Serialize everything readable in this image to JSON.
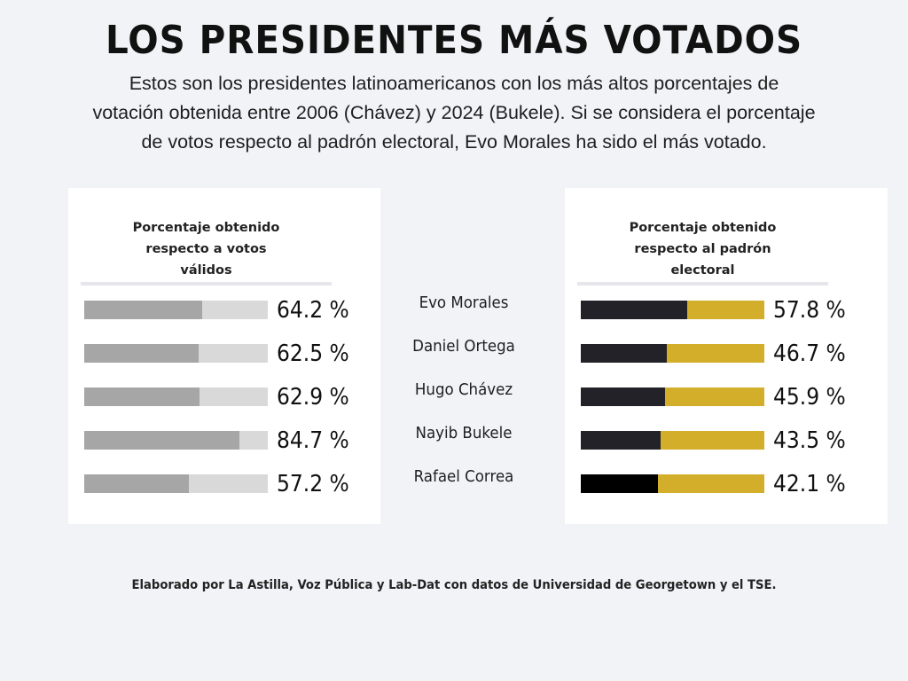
{
  "header": {
    "title": "LOS PRESIDENTES MÁS VOTADOS",
    "subtitle_lines": [
      "Estos son los presidentes  latinoamericanos con los más altos porcentajes de",
      "votación  obtenida entre 2006 (Chávez) y 2024 (Bukele). Si se considera el porcentaje",
      "de votos respecto al padrón electoral, Evo Morales ha sido el más votado."
    ]
  },
  "colors": {
    "background": "#f2f3f7",
    "panel": "#ffffff",
    "left_fill": "#a6a6a6",
    "left_track": "#d9d9d9",
    "right_fill": "#222228",
    "right_track": "#d2ae2a"
  },
  "chart_data": [
    {
      "type": "bar",
      "orientation": "horizontal",
      "title_lines": [
        "Porcentaje obtenido",
        "respecto a votos",
        "válidos"
      ],
      "categories": [
        "Evo Morales",
        "Daniel Ortega",
        "Hugo Chávez",
        "Nayib Bukele",
        "Rafael Correa"
      ],
      "values": [
        64.2,
        62.5,
        62.9,
        84.7,
        57.2
      ],
      "value_labels": [
        "64.2 %",
        "62.5 %",
        "62.9 %",
        "84.7 %",
        "57.2 %"
      ],
      "xlim": [
        0,
        100
      ],
      "unit": "%",
      "grid": false
    },
    {
      "type": "bar",
      "orientation": "horizontal",
      "title_lines": [
        "Porcentaje obtenido",
        "respecto al padrón",
        "electoral"
      ],
      "categories": [
        "Evo Morales",
        "Daniel Ortega",
        "Hugo Chávez",
        "Nayib Bukele",
        "Rafael Correa"
      ],
      "values": [
        57.8,
        46.7,
        45.9,
        43.5,
        42.1
      ],
      "value_labels": [
        "57.8 %",
        "46.7 %",
        "45.9 %",
        "43.5 %",
        "42.1 %"
      ],
      "xlim": [
        0,
        100
      ],
      "unit": "%",
      "grid": false
    }
  ],
  "names": [
    "Evo Morales",
    "Daniel Ortega",
    "Hugo Chávez",
    "Nayib Bukele",
    "Rafael Correa"
  ],
  "footer": "Elaborado por La Astilla, Voz Pública y Lab-Dat con datos de Universidad de Georgetown y el TSE."
}
